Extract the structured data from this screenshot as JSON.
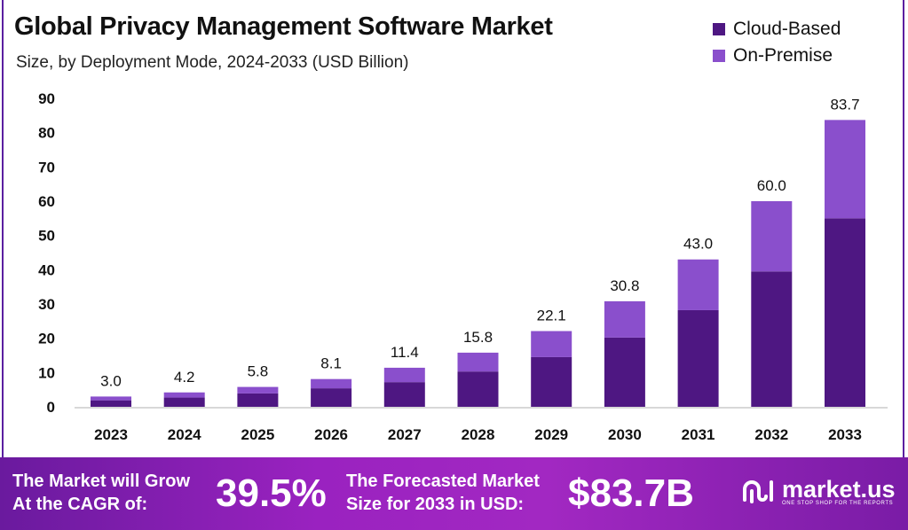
{
  "header": {
    "title": "Global Privacy Management Software Market",
    "subtitle": "Size, by Deployment Mode, 2024-2033 (USD Billion)"
  },
  "legend": [
    {
      "label": "Cloud-Based",
      "color": "#4e1782"
    },
    {
      "label": "On-Premise",
      "color": "#8a4fcc"
    }
  ],
  "chart_data": {
    "type": "bar",
    "stacked": true,
    "title": "Global Privacy Management Software Market",
    "subtitle": "Size, by Deployment Mode, 2024-2033 (USD Billion)",
    "categories": [
      "2023",
      "2024",
      "2025",
      "2026",
      "2027",
      "2028",
      "2029",
      "2030",
      "2031",
      "2032",
      "2033"
    ],
    "series": [
      {
        "name": "Cloud-Based",
        "color": "#4e1782",
        "values": [
          1.9,
          2.7,
          3.9,
          5.4,
          7.2,
          10.3,
          14.5,
          20.2,
          28.2,
          39.5,
          55.0
        ]
      },
      {
        "name": "On-Premise",
        "color": "#8a4fcc",
        "values": [
          1.1,
          1.5,
          1.9,
          2.7,
          4.2,
          5.5,
          7.6,
          10.6,
          14.8,
          20.5,
          28.7
        ]
      }
    ],
    "totals": [
      "3.0",
      "4.2",
      "5.8",
      "8.1",
      "11.4",
      "15.8",
      "22.1",
      "30.8",
      "43.0",
      "60.0",
      "83.7"
    ],
    "yticks": [
      "0",
      "10",
      "20",
      "30",
      "40",
      "50",
      "60",
      "70",
      "80",
      "90"
    ],
    "ylim": [
      0,
      90
    ],
    "grid": false,
    "legend_position": "top-right"
  },
  "footer": {
    "cagr_line1": "The Market will Grow",
    "cagr_line2": "At the CAGR of:",
    "cagr_value": "39.5%",
    "forecast_line1": "The Forecasted Market",
    "forecast_line2": "Size for 2033 in USD:",
    "forecast_value": "$83.7B",
    "brand": "market.us",
    "tagline": "ONE STOP SHOP FOR THE REPORTS"
  }
}
